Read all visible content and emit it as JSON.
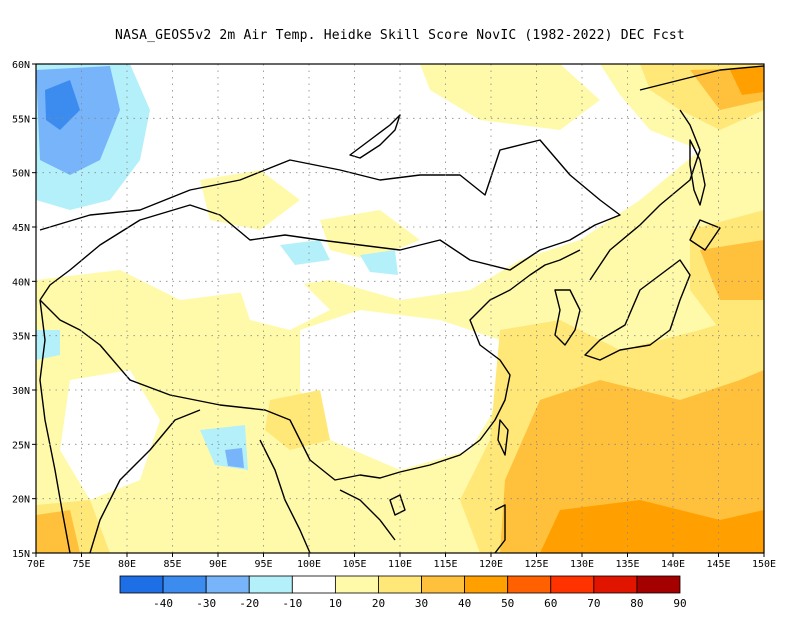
{
  "title": "NASA_GEOS5v2  2m Air Temp. Heidke Skill Score NovIC (1982-2022) DEC Fcst",
  "map": {
    "lon_range": [
      70,
      150
    ],
    "lat_range": [
      15,
      60
    ],
    "grid": "dotted",
    "lon_ticks": [
      "70E",
      "75E",
      "80E",
      "85E",
      "90E",
      "95E",
      "100E",
      "105E",
      "110E",
      "115E",
      "120E",
      "125E",
      "130E",
      "135E",
      "140E",
      "145E",
      "150E"
    ],
    "lat_ticks": [
      "15N",
      "20N",
      "25N",
      "30N",
      "35N",
      "40N",
      "45N",
      "50N",
      "55N",
      "60N"
    ],
    "land_color": "#ffffff",
    "coastline_color": "#000000"
  },
  "colorbar": {
    "labels": [
      "-40",
      "-30",
      "-20",
      "-10",
      "10",
      "20",
      "30",
      "40",
      "50",
      "60",
      "70",
      "80",
      "90"
    ],
    "colors": [
      "#1e6ee6",
      "#3c8cf0",
      "#78b4fa",
      "#b4f0fa",
      "#ffffff",
      "#fffaaa",
      "#ffe878",
      "#ffc03c",
      "#ffa000",
      "#ff6000",
      "#ff3200",
      "#e11400",
      "#a50000"
    ]
  }
}
